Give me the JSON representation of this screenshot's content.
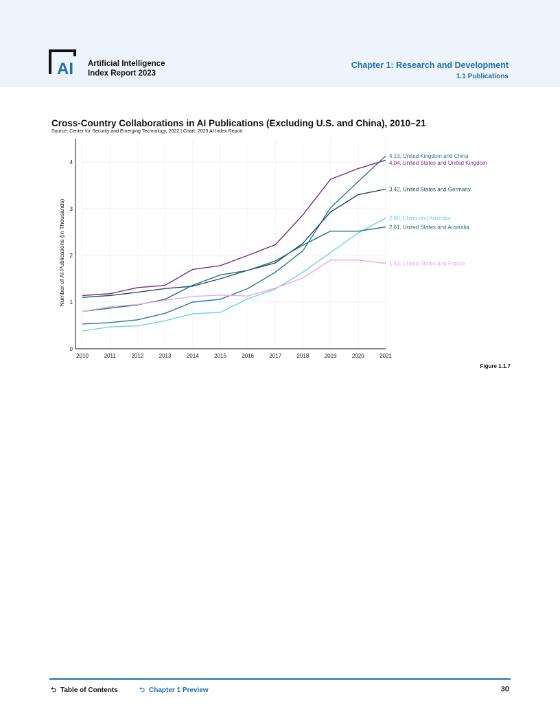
{
  "header": {
    "logo_text": "AI",
    "report_title_line1": "Artificial Intelligence",
    "report_title_line2": "Index Report 2023",
    "chapter_title": "Chapter 1: Research and Development",
    "section_title": "1.1 Publications"
  },
  "figure": {
    "label": "Figure 1.1.7"
  },
  "chart_data": {
    "type": "line",
    "title": "Cross-Country Collaborations in AI Publications (Excluding U.S. and China), 2010–21",
    "subtitle": "Source: Center for Security and Emerging Technology, 2022 | Chart: 2023 AI Index Report",
    "xlabel": "",
    "ylabel": "Number of AI Publications (in Thousands)",
    "x": [
      2010,
      2011,
      2012,
      2013,
      2014,
      2015,
      2016,
      2017,
      2018,
      2019,
      2020,
      2021
    ],
    "ylim": [
      0,
      4.5
    ],
    "yticks": [
      0,
      1,
      2,
      3,
      4
    ],
    "grid": true,
    "legend": "end-of-line labels",
    "series": [
      {
        "name": "United States and United Kingdom",
        "end_label": "4.04, United States and United Kingdom",
        "color": "#7b2a8c",
        "values": [
          1.14,
          1.18,
          1.31,
          1.36,
          1.7,
          1.78,
          2.0,
          2.23,
          2.87,
          3.63,
          3.86,
          4.04
        ]
      },
      {
        "name": "United Kingdom and China",
        "end_label": "4.13, United Kingdom and China",
        "color": "#2a73a8",
        "values": [
          0.53,
          0.56,
          0.62,
          0.76,
          1.0,
          1.06,
          1.29,
          1.64,
          2.1,
          3.02,
          3.58,
          4.13
        ]
      },
      {
        "name": "United States and Germany",
        "end_label": "3.42, United States and Germany",
        "color": "#1e4f5a",
        "values": [
          1.1,
          1.14,
          1.21,
          1.29,
          1.34,
          1.5,
          1.68,
          1.84,
          2.26,
          2.93,
          3.3,
          3.42
        ]
      },
      {
        "name": "China and Australia",
        "end_label": "2.80, China and Australia",
        "color": "#6fd0f0",
        "values": [
          0.38,
          0.47,
          0.49,
          0.6,
          0.75,
          0.78,
          1.07,
          1.28,
          1.64,
          2.06,
          2.48,
          2.8
        ]
      },
      {
        "name": "United States and Australia",
        "end_label": "2.61, United States and Australia",
        "color": "#1f7083",
        "values": [
          0.8,
          0.87,
          0.94,
          1.06,
          1.36,
          1.58,
          1.68,
          1.88,
          2.22,
          2.52,
          2.52,
          2.61
        ]
      },
      {
        "name": "United States and France",
        "end_label": "1.83, United States and France",
        "color": "#e9a6e9",
        "values": [
          0.8,
          0.9,
          0.95,
          1.04,
          1.12,
          1.15,
          1.13,
          1.3,
          1.52,
          1.9,
          1.9,
          1.83
        ]
      }
    ]
  },
  "footer": {
    "toc_label": "Table of Contents",
    "preview_label": "Chapter 1 Preview",
    "page_number": "30"
  }
}
